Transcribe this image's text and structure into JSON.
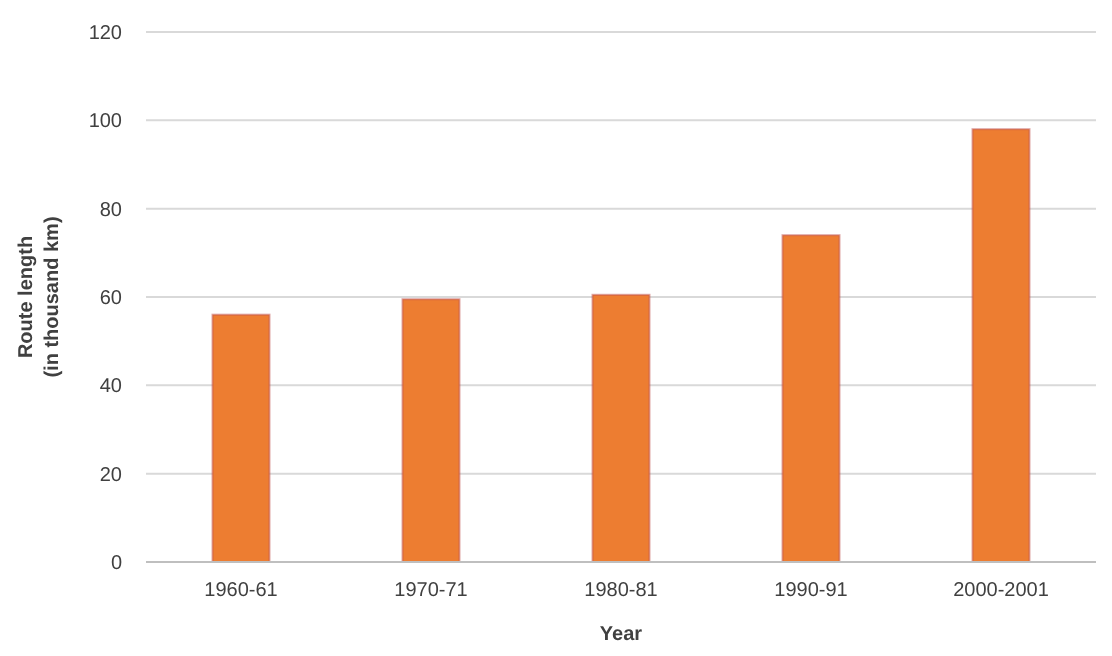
{
  "chart_data": {
    "type": "bar",
    "xlabel": "Year",
    "ylabel": "Route length\n(in thousand km)",
    "categories": [
      "1960-61",
      "1970-71",
      "1980-81",
      "1990-91",
      "2000-2001"
    ],
    "values": [
      56,
      59.5,
      60.5,
      74,
      98
    ],
    "color": "#ed7d31",
    "ylim": [
      0,
      120
    ],
    "yticks": [
      0,
      20,
      40,
      60,
      80,
      100,
      120
    ],
    "grid": "y"
  }
}
